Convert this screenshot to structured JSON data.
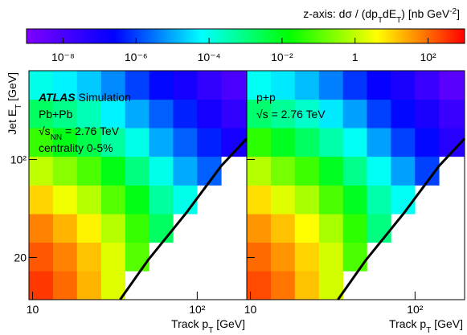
{
  "colorbar": {
    "title": [
      {
        "t": "z-axis: dσ / (dp"
      },
      {
        "t": "T",
        "s": "sub"
      },
      {
        "t": "dE"
      },
      {
        "t": "T",
        "s": "sub"
      },
      {
        "t": ") [nb GeV"
      },
      {
        "t": "-2",
        "s": "sup"
      },
      {
        "t": "]"
      }
    ],
    "zlim": [
      1e-09,
      1000
    ],
    "log": true,
    "zticks": [
      {
        "value": 1e-08,
        "label": "10⁻⁸"
      },
      {
        "value": 1e-06,
        "label": "10⁻⁶"
      },
      {
        "value": 0.0001,
        "label": "10⁻⁴"
      },
      {
        "value": 0.01,
        "label": "10⁻²"
      },
      1,
      {
        "value": 100,
        "label": "10²"
      }
    ],
    "colormap": [
      "#7f00ff",
      "#0000ff",
      "#00ffff",
      "#00ff00",
      "#ffff00",
      "#ff0000"
    ]
  },
  "chart_data": [
    {
      "type": "heatmap",
      "xlog": true,
      "ylog": true,
      "xlim": [
        9.5,
        200
      ],
      "ylim": [
        10,
        430
      ],
      "xticks": [
        10,
        {
          "value": 100,
          "label": "10²"
        }
      ],
      "yticks": [
        20,
        {
          "value": 100,
          "label": "10²"
        }
      ],
      "x_label": [
        {
          "t": "Track p"
        },
        {
          "t": "T",
          "s": "sub"
        },
        {
          "t": " [GeV]"
        }
      ],
      "y_label": [
        {
          "t": "Jet E"
        },
        {
          "t": "T",
          "s": "sub"
        },
        {
          "t": " [GeV]"
        }
      ],
      "annotations": [
        [
          {
            "t": "ATLAS",
            "s": "bi"
          },
          {
            "t": " Simulation"
          }
        ],
        [
          {
            "t": "Pb+Pb"
          }
        ],
        [
          {
            "t": "√s"
          },
          {
            "t": "NN",
            "s": "sub"
          },
          {
            "t": " = 2.76 TeV"
          }
        ],
        [
          {
            "t": "centrality 0-5%"
          }
        ]
      ],
      "xbins": [
        9.5,
        13.3,
        18.6,
        26.1,
        36.5,
        51,
        71.4,
        99.9,
        140,
        200
      ],
      "ybins": [
        10,
        16,
        25.6,
        40.9,
        65.5,
        105,
        168,
        268,
        430
      ],
      "z": [
        [
          300,
          100,
          20,
          2,
          null,
          null,
          null,
          null,
          null
        ],
        [
          150,
          60,
          15,
          2,
          0.1,
          null,
          null,
          null,
          null
        ],
        [
          60,
          20,
          5,
          0.8,
          0.05,
          0.002,
          null,
          null,
          null
        ],
        [
          10,
          3,
          0.8,
          0.1,
          0.01,
          0.0005,
          0.0001,
          null,
          null
        ],
        [
          1,
          0.3,
          0.08,
          0.01,
          0.001,
          0.0001,
          1e-05,
          2e-06,
          null
        ],
        [
          0.05,
          0.01,
          0.003,
          0.0005,
          0.0001,
          1e-05,
          2e-06,
          5e-07,
          1e-07
        ],
        [
          0.002,
          0.0008,
          0.0003,
          5e-05,
          1e-05,
          2e-06,
          5e-07,
          1e-07,
          3e-08
        ],
        [
          0.0001,
          5e-05,
          2e-05,
          5e-06,
          1e-06,
          3e-07,
          1e-07,
          3e-08,
          1e-08
        ]
      ],
      "curve": {
        "color": "#000000",
        "x": [
          34,
          50,
          85,
          140,
          200
        ],
        "y": [
          10,
          19,
          41,
          90,
          141
        ]
      }
    },
    {
      "type": "heatmap",
      "xlog": true,
      "ylog": true,
      "xlim": [
        9.5,
        200
      ],
      "ylim": [
        10,
        430
      ],
      "xticks": [
        10,
        {
          "value": 100,
          "label": "10²"
        }
      ],
      "x_label": [
        {
          "t": "Track p"
        },
        {
          "t": "T",
          "s": "sub"
        },
        {
          "t": " [GeV]"
        }
      ],
      "annotations": [
        [
          {
            "t": "p+p"
          }
        ],
        [
          {
            "t": "√s = 2.76 TeV"
          }
        ]
      ],
      "xbins": [
        9.5,
        13.3,
        18.6,
        26.1,
        36.5,
        51,
        71.4,
        99.9,
        140,
        200
      ],
      "ybins": [
        10,
        16,
        25.6,
        40.9,
        65.5,
        105,
        168,
        268,
        430
      ],
      "z": [
        [
          200,
          80,
          15,
          1.5,
          null,
          null,
          null,
          null,
          null
        ],
        [
          100,
          40,
          10,
          1.5,
          0.08,
          null,
          null,
          null,
          null
        ],
        [
          40,
          15,
          4,
          0.6,
          0.04,
          0.001,
          null,
          null,
          null
        ],
        [
          8,
          2,
          0.6,
          0.08,
          0.008,
          0.0004,
          8e-05,
          null,
          null
        ],
        [
          0.8,
          0.2,
          0.06,
          0.008,
          0.0008,
          8e-05,
          8e-06,
          1e-06,
          null
        ],
        [
          0.04,
          0.008,
          0.002,
          0.0004,
          8e-05,
          8e-06,
          1e-06,
          3e-07,
          5e-08
        ],
        [
          0.0015,
          0.0006,
          0.0002,
          4e-05,
          8e-06,
          1e-06,
          3e-07,
          8e-08,
          2e-08
        ],
        [
          8e-05,
          4e-05,
          1.5e-05,
          4e-06,
          8e-07,
          2e-07,
          8e-08,
          2e-08,
          5e-09
        ]
      ],
      "curve": {
        "color": "#000000",
        "x": [
          34,
          50,
          85,
          140,
          200
        ],
        "y": [
          10,
          19,
          41,
          90,
          141
        ]
      }
    }
  ]
}
